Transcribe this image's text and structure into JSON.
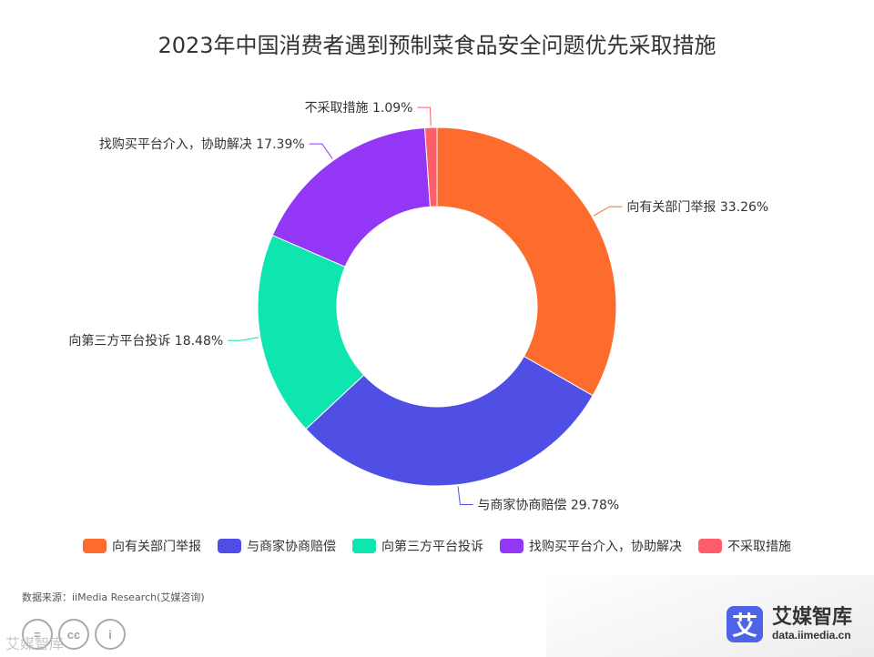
{
  "chart_data": {
    "type": "pie",
    "donut": true,
    "title": "2023年中国消费者遇到预制菜食品安全问题优先采取措施",
    "categories": [
      "向有关部门举报",
      "与商家协商赔偿",
      "向第三方平台投诉",
      "找购买平台介入，协助解决",
      "不采取措施"
    ],
    "values": [
      33.26,
      29.78,
      18.48,
      17.39,
      1.09
    ],
    "value_labels": [
      "33.26%",
      "29.78%",
      "18.48%",
      "17.39%",
      "1.09%"
    ],
    "colors": [
      "#fd6b2d",
      "#4f4fe5",
      "#0fe6af",
      "#9336f6",
      "#fe5d6a"
    ],
    "legend_position": "bottom"
  },
  "source": "数据来源：iiMedia Research(艾媒咨询)",
  "brand": {
    "logo_char": "艾",
    "name": "艾媒智库",
    "url": "data.iimedia.cn"
  },
  "license_icons": [
    "=",
    "cc",
    "i"
  ],
  "watermark": "艾媒智库"
}
